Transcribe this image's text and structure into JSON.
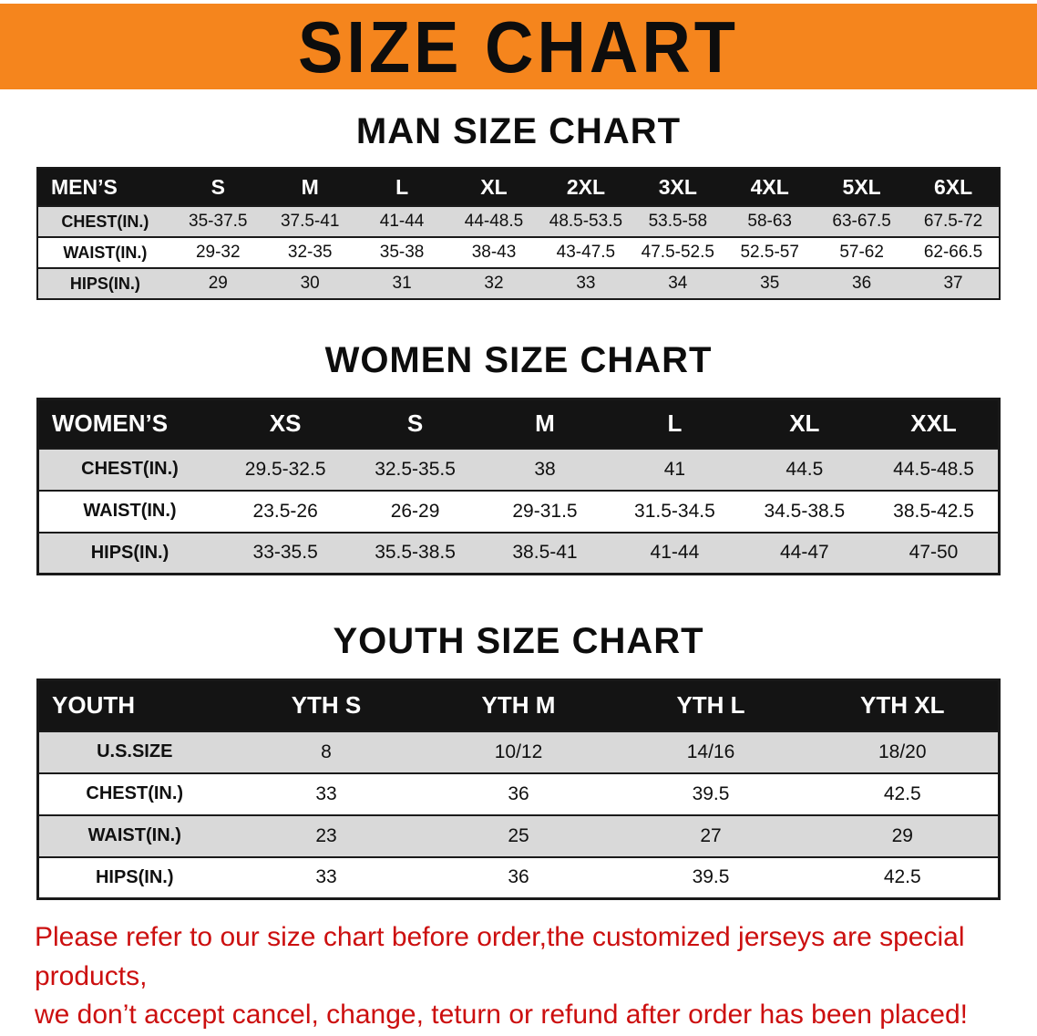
{
  "banner": {
    "title": "SIZE CHART"
  },
  "colors": {
    "banner_bg": "#f5851d",
    "table_header_bg": "#141414",
    "table_header_text": "#ffffff",
    "row_stripe": "#d9d9d9",
    "footer_text": "#cc0f0f"
  },
  "sections": [
    {
      "title": "MAN SIZE CHART",
      "table": {
        "name": "mens",
        "header": [
          "MEN’S",
          "S",
          "M",
          "L",
          "XL",
          "2XL",
          "3XL",
          "4XL",
          "5XL",
          "6XL"
        ],
        "rows": [
          [
            "CHEST(IN.)",
            "35-37.5",
            "37.5-41",
            "41-44",
            "44-48.5",
            "48.5-53.5",
            "53.5-58",
            "58-63",
            "63-67.5",
            "67.5-72"
          ],
          [
            "WAIST(IN.)",
            "29-32",
            "32-35",
            "35-38",
            "38-43",
            "43-47.5",
            "47.5-52.5",
            "52.5-57",
            "57-62",
            "62-66.5"
          ],
          [
            "HIPS(IN.)",
            "29",
            "30",
            "31",
            "32",
            "33",
            "34",
            "35",
            "36",
            "37"
          ]
        ]
      }
    },
    {
      "title": "WOMEN SIZE CHART",
      "table": {
        "name": "womens",
        "header": [
          "WOMEN’S",
          "XS",
          "S",
          "M",
          "L",
          "XL",
          "XXL"
        ],
        "rows": [
          [
            "CHEST(IN.)",
            "29.5-32.5",
            "32.5-35.5",
            "38",
            "41",
            "44.5",
            "44.5-48.5"
          ],
          [
            "WAIST(IN.)",
            "23.5-26",
            "26-29",
            "29-31.5",
            "31.5-34.5",
            "34.5-38.5",
            "38.5-42.5"
          ],
          [
            "HIPS(IN.)",
            "33-35.5",
            "35.5-38.5",
            "38.5-41",
            "41-44",
            "44-47",
            "47-50"
          ]
        ]
      }
    },
    {
      "title": "YOUTH SIZE CHART",
      "table": {
        "name": "youth",
        "header": [
          "YOUTH",
          "YTH S",
          "YTH M",
          "YTH L",
          "YTH XL"
        ],
        "rows": [
          [
            "U.S.SIZE",
            "8",
            "10/12",
            "14/16",
            "18/20"
          ],
          [
            "CHEST(IN.)",
            "33",
            "36",
            "39.5",
            "42.5"
          ],
          [
            "WAIST(IN.)",
            "23",
            "25",
            "27",
            "29"
          ],
          [
            "HIPS(IN.)",
            "33",
            "36",
            "39.5",
            "42.5"
          ]
        ]
      }
    }
  ],
  "footer": {
    "line1": "Please refer to our size chart before order,the customized jerseys are special products,",
    "line2": "we don’t accept cancel, change, teturn or refund after order has been placed!"
  }
}
